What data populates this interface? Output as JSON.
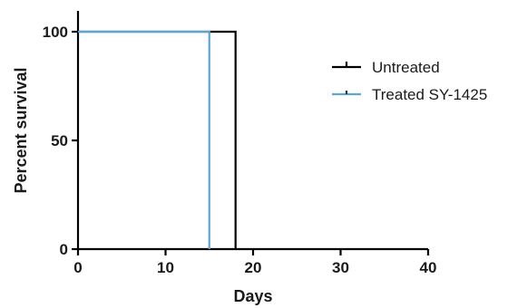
{
  "chart_data": {
    "type": "line",
    "subtype": "kaplan-meier-survival",
    "title": "",
    "xlabel": "Days",
    "ylabel": "Percent survival",
    "xlim": [
      0,
      40
    ],
    "ylim": [
      0,
      100
    ],
    "xticks": [
      "0",
      "10",
      "20",
      "30",
      "40"
    ],
    "yticks": [
      "0",
      "50",
      "100"
    ],
    "grid": false,
    "legend_position": "right",
    "series": [
      {
        "name": "Untreated",
        "color": "#000000",
        "marker": "tick",
        "steps": [
          {
            "x": 0,
            "y": 100
          },
          {
            "x": 18,
            "y": 100
          },
          {
            "x": 18,
            "y": 0
          }
        ]
      },
      {
        "name": "Treated SY-1425",
        "color": "#5aa7d6",
        "marker": "tick",
        "steps": [
          {
            "x": 0,
            "y": 100
          },
          {
            "x": 15,
            "y": 100
          },
          {
            "x": 15,
            "y": 0
          }
        ]
      }
    ]
  }
}
